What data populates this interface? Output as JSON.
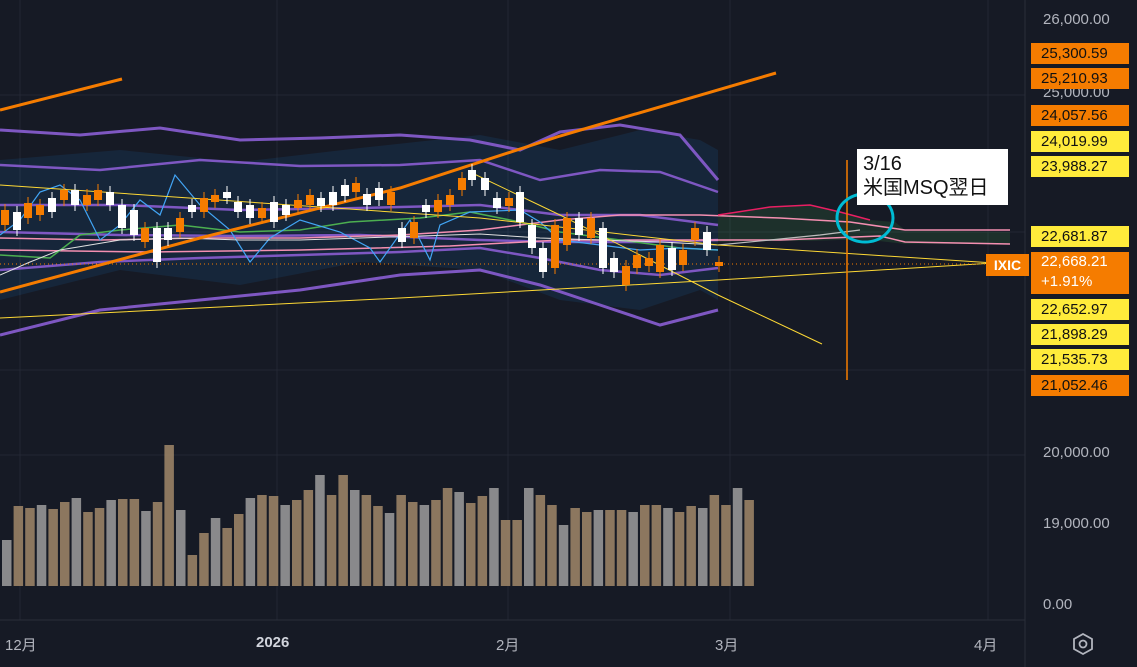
{
  "price_axis": {
    "ticks": [
      {
        "label": "26,000.00"
      },
      {
        "label": "25,000.00"
      },
      {
        "label": "20,000.00"
      },
      {
        "label": "19,000.00"
      },
      {
        "label": "0.00"
      }
    ],
    "price_labels": [
      {
        "value": "25,300.59",
        "color": "#f57c00"
      },
      {
        "value": "25,210.93",
        "color": "#f57c00"
      },
      {
        "value": "24,057.56",
        "color": "#f57c00"
      },
      {
        "value": "24,019.99",
        "color": "#ffeb3b"
      },
      {
        "value": "23,988.27",
        "color": "#ffeb3b"
      },
      {
        "value": "22,681.87",
        "color": "#ffeb3b"
      },
      {
        "value": "22,652.97",
        "color": "#ffeb3b"
      },
      {
        "value": "21,898.29",
        "color": "#ffeb3b"
      },
      {
        "value": "21,535.73",
        "color": "#ffeb3b"
      },
      {
        "value": "21,052.46",
        "color": "#f57c00"
      }
    ],
    "current": {
      "symbol": "IXIC",
      "price": "22,668.21",
      "change": "+1.91%",
      "color": "#f57c00"
    }
  },
  "time_axis": {
    "labels": [
      "12月",
      "2026",
      "2月",
      "3月",
      "4月"
    ]
  },
  "annotation": {
    "line1": "3/16",
    "line2": "米国MSQ翌日"
  },
  "icons": {
    "settings": "settings-icon"
  }
}
